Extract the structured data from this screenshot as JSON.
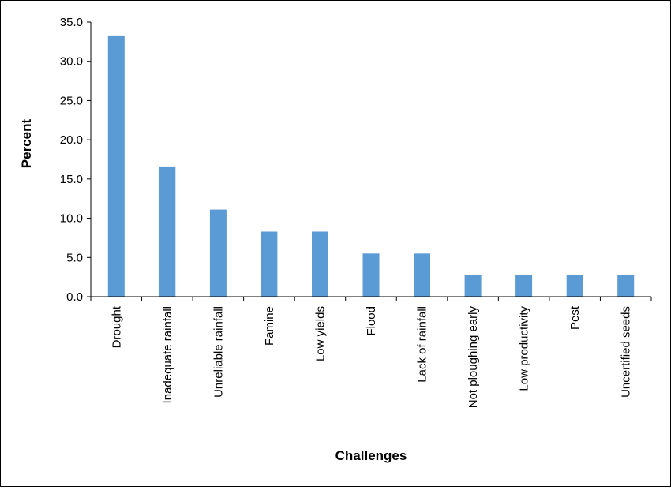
{
  "chart_data": {
    "type": "bar",
    "title": "",
    "xlabel": "Challenges",
    "ylabel": "Percent",
    "ylim": [
      0,
      35
    ],
    "ytick_step": 5,
    "yticks": [
      "0.0",
      "5.0",
      "10.0",
      "15.0",
      "20.0",
      "25.0",
      "30.0",
      "35.0"
    ],
    "grid": false,
    "legend": "none",
    "bar_color": "#5B9BD5",
    "categories": [
      "Drought",
      "Inadequate rainfall",
      "Unreliable rainfall",
      "Famine",
      "Low yields",
      "Flood",
      "Lack of rainfall",
      "Not ploughing early",
      "Low productivity",
      "Pest",
      "Uncertified seeds"
    ],
    "values": [
      33.3,
      16.5,
      11.1,
      8.3,
      8.3,
      5.5,
      5.5,
      2.8,
      2.8,
      2.8,
      2.8
    ]
  }
}
